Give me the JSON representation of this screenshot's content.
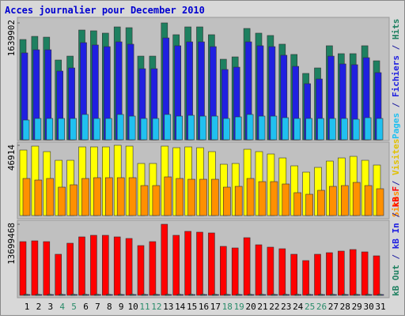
{
  "chart_data": {
    "title": "Acces journalier pour December 2010",
    "categories": [
      "1",
      "2",
      "3",
      "4",
      "5",
      "6",
      "7",
      "8",
      "9",
      "10",
      "11",
      "12",
      "13",
      "14",
      "15",
      "16",
      "17",
      "18",
      "19",
      "20",
      "21",
      "22",
      "23",
      "24",
      "25",
      "26",
      "27",
      "28",
      "29",
      "30",
      "31"
    ],
    "category_colors": [
      "#000000",
      "#000000",
      "#000000",
      "#2a8c6a",
      "#2a8c6a",
      "#000000",
      "#000000",
      "#000000",
      "#000000",
      "#000000",
      "#2a8c6a",
      "#2a8c6a",
      "#000000",
      "#000000",
      "#000000",
      "#000000",
      "#000000",
      "#2a8c6a",
      "#2a8c6a",
      "#000000",
      "#000000",
      "#000000",
      "#000000",
      "#000000",
      "#2a8c6a",
      "#2a8c6a",
      "#000000",
      "#000000",
      "#000000",
      "#000000",
      "#000000"
    ],
    "legend_separator": " / ",
    "panels": [
      {
        "type": "bar",
        "ylim": [
          0,
          1639902
        ],
        "yticks": [
          1639902
        ],
        "series": [
          {
            "name": "Hits",
            "color": "#1e8060",
            "values": [
              1407000,
              1451000,
              1440000,
              1119000,
              1174000,
              1540000,
              1529000,
              1496000,
              1584000,
              1573000,
              1174000,
              1174000,
              1639902,
              1474000,
              1584000,
              1584000,
              1474000,
              1130000,
              1163000,
              1562000,
              1496000,
              1463000,
              1341000,
              1197000,
              931000,
              1008000,
              1319000,
              1208000,
              1208000,
              1319000,
              1108000
            ]
          },
          {
            "name": "Fichiers",
            "color": "#2020e0",
            "values": [
              1219000,
              1263000,
              1263000,
              964000,
              1008000,
              1363000,
              1330000,
              1307000,
              1374000,
              1341000,
              997000,
              997000,
              1429000,
              1319000,
              1374000,
              1374000,
              1307000,
              986000,
              1019000,
              1374000,
              1319000,
              1307000,
              1186000,
              1030000,
              787000,
              853000,
              1174000,
              1064000,
              1053000,
              1152000,
              942000
            ]
          },
          {
            "name": "Pages",
            "color": "#20c0f0",
            "values": [
              277000,
              299000,
              299000,
              299000,
              299000,
              355000,
              299000,
              299000,
              355000,
              332000,
              299000,
              299000,
              355000,
              332000,
              343000,
              332000,
              332000,
              299000,
              321000,
              355000,
              332000,
              332000,
              310000,
              299000,
              299000,
              299000,
              299000,
              299000,
              288000,
              310000,
              299000
            ]
          }
        ]
      },
      {
        "type": "bar",
        "ylim": [
          0,
          46914
        ],
        "yticks": [
          46914
        ],
        "series": [
          {
            "name": "Visites",
            "color": "#ffff00",
            "values": [
              43741,
              46376,
              42687,
              36890,
              36890,
              45849,
              45849,
              45849,
              46914,
              46376,
              34782,
              34782,
              46376,
              45322,
              45849,
              45322,
              42687,
              34255,
              34782,
              44268,
              42687,
              41106,
              38471,
              33201,
              28985,
              32147,
              36363,
              38471,
              39525,
              36890,
              33728
            ]
          },
          {
            "name": "Sites",
            "color": "#ff9000",
            "values": [
              24769,
              23715,
              24769,
              18972,
              20553,
              24769,
              25296,
              25296,
              25296,
              25296,
              20026,
              20026,
              25823,
              24769,
              24242,
              24242,
              24242,
              18972,
              19499,
              24769,
              22661,
              22661,
              21080,
              15283,
              14229,
              16864,
              19499,
              20026,
              22134,
              20026,
              17918
            ]
          }
        ]
      },
      {
        "type": "bar",
        "ylim": [
          0,
          13699468
        ],
        "yticks": [
          13699468
        ],
        "series": [
          {
            "name": "kB F",
            "color": "#ff0000",
            "values": [
              10350688,
              10502904,
              10350688,
              7915232,
              10046256,
              11263984,
              11568416,
              11568416,
              11263984,
              10959552,
              9589608,
              10350688,
              13699468,
              11568416,
              12329496,
              12177280,
              12025064,
              9437392,
              9132960,
              11111768,
              9741824,
              9285176,
              8980744,
              7915232,
              6697504,
              7915232,
              8219664,
              8524096,
              8828528,
              8371880,
              7610800
            ]
          },
          {
            "name": "kB In",
            "color": "#2020e0",
            "values": [
              150000,
              150000,
              150000,
              150000,
              150000,
              150000,
              150000,
              150000,
              150000,
              150000,
              150000,
              150000,
              150000,
              150000,
              150000,
              150000,
              150000,
              150000,
              150000,
              150000,
              150000,
              150000,
              150000,
              150000,
              150000,
              150000,
              150000,
              150000,
              150000,
              150000,
              150000
            ]
          },
          {
            "name": "kB Out",
            "color": "#1e8060",
            "values": [
              200000,
              200000,
              200000,
              200000,
              200000,
              200000,
              200000,
              200000,
              200000,
              200000,
              200000,
              200000,
              200000,
              200000,
              200000,
              200000,
              200000,
              200000,
              200000,
              200000,
              200000,
              200000,
              200000,
              200000,
              200000,
              200000,
              200000,
              200000,
              200000,
              200000,
              200000
            ]
          }
        ]
      }
    ]
  }
}
